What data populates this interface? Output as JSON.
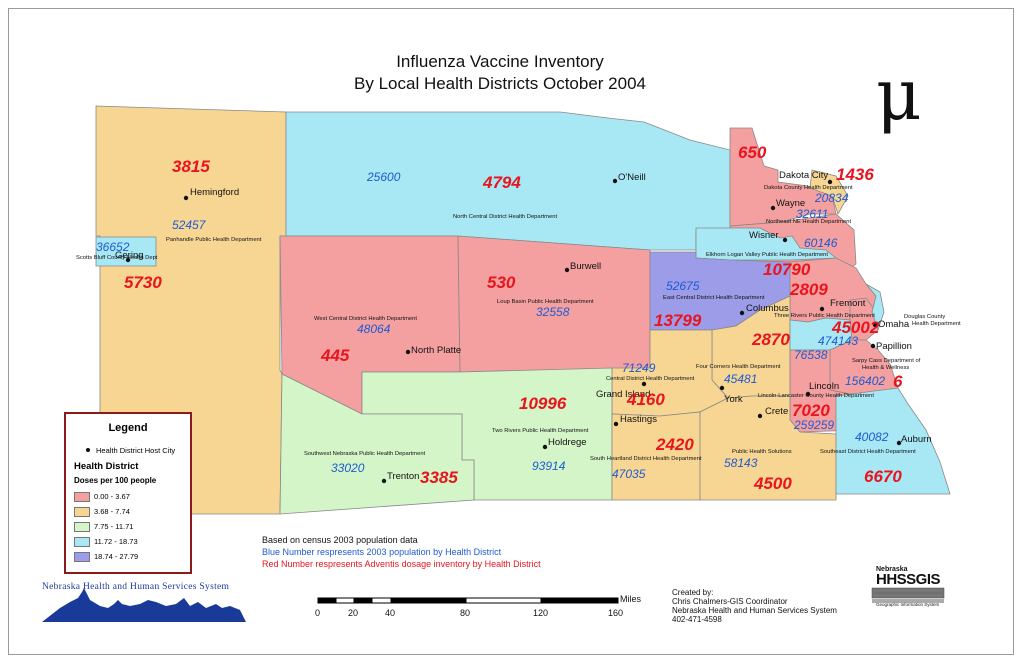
{
  "title": {
    "line1": "Influenza Vaccine Inventory",
    "line2": "By Local Health Districts October 2004"
  },
  "north_symbol": "μ",
  "colors": {
    "class1": "#f4a0a0",
    "class2": "#f7d694",
    "class3": "#d4f5c8",
    "class4": "#a8e8f5",
    "class5": "#9c9ce8",
    "red_text": "#e8141e",
    "blue_text": "#1e5ad2"
  },
  "districts": {
    "panhandle": {
      "name": "Panhandle Public Health Department",
      "pop": "52457",
      "doses": "3815"
    },
    "scotts_bluff": {
      "name": "Scotts Bluff County Health Dept",
      "pop": "36652",
      "doses": "5730"
    },
    "north_central": {
      "name": "North Central District Health Department",
      "pop": "25600",
      "doses": "4794"
    },
    "dakota": {
      "name": "Dakota County Health Department",
      "pop": "20834",
      "doses": "1436"
    },
    "northeast": {
      "name": "Northeast NE Health Department",
      "pop": "32611",
      "doses": "650"
    },
    "elkhorn": {
      "name": "Elkhorn Logan Valley Public Health Department",
      "pop": "60146",
      "doses": "10790"
    },
    "loup_basin": {
      "name": "Loup Basin Public Health Department",
      "pop": "32558",
      "doses": "530"
    },
    "west_central": {
      "name": "West Central District Health Department",
      "pop": "48064",
      "doses": "445"
    },
    "east_central": {
      "name": "East Central District Health Department",
      "pop": "52675",
      "doses": "13799"
    },
    "three_rivers": {
      "name": "Three Rivers Public Health Department",
      "pop": "474143",
      "doses": "2809"
    },
    "douglas": {
      "name": "Douglas County Health Department",
      "pop": "",
      "doses": "45002"
    },
    "sarpy_cass": {
      "name": "Sarpy Cass Department of Health & Wellness",
      "pop": "156402",
      "doses": "6"
    },
    "four_corners": {
      "name": "Four Corners Health Department",
      "pop": "45481",
      "doses": "2870"
    },
    "central": {
      "name": "Central District Health Department",
      "pop": "71249",
      "doses": "4160"
    },
    "two_rivers": {
      "name": "Two Rivers Public Health Department",
      "pop": "93914",
      "doses": "10996"
    },
    "lincoln": {
      "name": "Lincoln-Lancaster County Health Department",
      "pop": "259259",
      "doses": "7020"
    },
    "southwest": {
      "name": "Southwest Nebraska Public Health Department",
      "pop": "33020",
      "doses": "3385"
    },
    "south_heartland": {
      "name": "South Heartland District Health Department",
      "pop": "47035",
      "doses": "2420"
    },
    "public_health_solutions": {
      "name": "Public Health Solutions",
      "pop": "58143",
      "doses": "4500"
    },
    "southeast": {
      "name": "Southeast District Health Department",
      "pop": "40082",
      "doses": "6670"
    },
    "four_corners_extra": {
      "pop": "76538"
    }
  },
  "cities": [
    "Hemingford",
    "Gering",
    "O'Neill",
    "Dakota City",
    "Wayne",
    "Wisner",
    "Burwell",
    "Columbus",
    "Fremont",
    "Omaha",
    "Papillion",
    "North Platte",
    "Grand Island",
    "York",
    "Lincoln",
    "Hastings",
    "Holdrege",
    "Crete",
    "Trenton",
    "Auburn"
  ],
  "legend": {
    "title": "Legend",
    "host_city": "Health District Host City",
    "heading": "Health District",
    "subheading": "Doses per 100 people",
    "classes": [
      "0.00 - 3.67",
      "3.68 - 7.74",
      "7.75 - 11.71",
      "11.72 - 18.73",
      "18.74 - 27.79"
    ]
  },
  "notes": {
    "line1": "Based on census 2003 population data",
    "line2": "Blue Number respresents 2003 population by Health District",
    "line3": "Red Number respresents Adventis dosage inventory by Health District"
  },
  "scale": {
    "unit": "Miles",
    "ticks": [
      "0",
      "20",
      "40",
      "80",
      "120",
      "160"
    ]
  },
  "credit": {
    "line1": "Created by:",
    "line2": "Chris Chalmers-GIS Coordinator",
    "line3": "Nebraska Health and Human Services System",
    "line4": "402-471-4598"
  },
  "logos": {
    "nhhs": "Nebraska Health and Human Services System",
    "hhsgis_state": "Nebraska",
    "hhsgis_main": "HHSSGIS",
    "hhsgis_sub": "Geographic Information System"
  }
}
